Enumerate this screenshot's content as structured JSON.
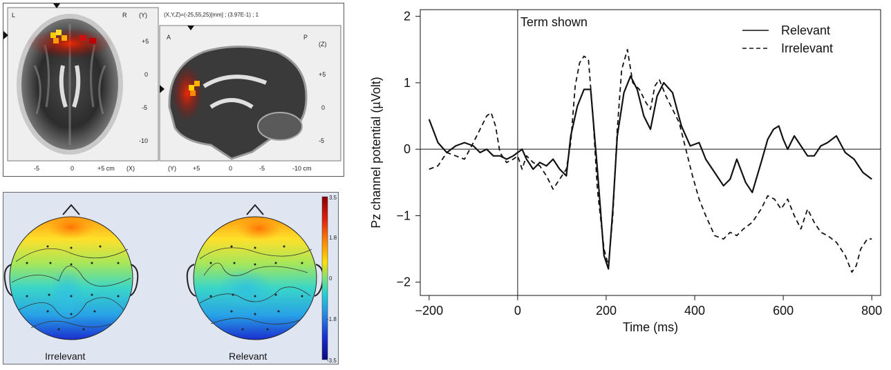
{
  "brain_panel": {
    "coord_readout": "(X,Y,Z)=(-25,55,25)[mm] ; (3.97E-1) ; 1",
    "axial": {
      "corner_left": "L",
      "corner_right": "R",
      "axis_label_right": "(Y)",
      "right_ticks": [
        "+5",
        "0",
        "-5",
        "-10"
      ],
      "bottom_ticks": [
        "-5",
        "0",
        "+5 cm",
        "(X)"
      ]
    },
    "sagittal": {
      "corner_left": "A",
      "corner_right": "P",
      "axis_label_right": "(Z)",
      "right_ticks": [
        "+5",
        "0",
        "-5"
      ],
      "bottom_label_left": "(Y)",
      "bottom_ticks": [
        "+5",
        "0",
        "-5",
        "-10 cm"
      ]
    }
  },
  "scalp_maps": {
    "maps": [
      {
        "label": "Irrelevant"
      },
      {
        "label": "Relevant"
      }
    ],
    "colorbar": {
      "ticks": [
        "3.5",
        "1.8",
        "0",
        "-1.8",
        "-3.5"
      ],
      "colors": [
        "#8b0000",
        "#e02010",
        "#ff8a00",
        "#ffe000",
        "#7ee07a",
        "#20d0d8",
        "#2a8ae0",
        "#1a2fd0",
        "#0a0a80"
      ]
    }
  },
  "chart_data": {
    "type": "line",
    "title": "",
    "xlabel": "Time (ms)",
    "ylabel": "Pz channel potential (µVolt)",
    "xlim": [
      -220,
      820
    ],
    "ylim": [
      -2.2,
      2.1
    ],
    "xticks": [
      -200,
      0,
      200,
      400,
      600,
      800
    ],
    "xtick_labels": [
      "−200",
      "0",
      "200",
      "400",
      "600",
      "800"
    ],
    "yticks": [
      -2,
      -1,
      0,
      1,
      2
    ],
    "ytick_labels": [
      "−2",
      "−1",
      "0",
      "1",
      "2"
    ],
    "grid": false,
    "legend_position": "top-right",
    "annotations": [
      {
        "text": "Term shown",
        "x": 0
      }
    ],
    "reference_lines": {
      "horizontal": 0,
      "vertical": 0
    },
    "series": [
      {
        "name": "Relevant",
        "style": "solid",
        "x": [
          -200,
          -180,
          -160,
          -140,
          -120,
          -100,
          -85,
          -70,
          -55,
          -40,
          -25,
          -10,
          0,
          10,
          20,
          35,
          50,
          65,
          80,
          95,
          110,
          120,
          135,
          150,
          165,
          180,
          195,
          205,
          215,
          225,
          240,
          255,
          270,
          285,
          300,
          315,
          330,
          350,
          370,
          390,
          410,
          425,
          445,
          465,
          480,
          495,
          515,
          530,
          550,
          565,
          578,
          590,
          600,
          610,
          625,
          640,
          655,
          670,
          685,
          700,
          720,
          740,
          760,
          780,
          800
        ],
        "values": [
          0.45,
          0.1,
          -0.05,
          0.05,
          0.1,
          0.05,
          -0.05,
          0.0,
          -0.1,
          -0.1,
          -0.15,
          -0.1,
          -0.05,
          0.0,
          -0.15,
          -0.3,
          -0.2,
          -0.25,
          -0.15,
          -0.3,
          -0.4,
          0.2,
          0.65,
          0.9,
          0.9,
          -0.3,
          -1.6,
          -1.8,
          -0.9,
          0.2,
          0.85,
          1.1,
          0.9,
          0.5,
          0.3,
          0.8,
          1.0,
          0.85,
          0.35,
          0.05,
          0.1,
          -0.15,
          -0.35,
          -0.55,
          -0.45,
          -0.15,
          -0.5,
          -0.65,
          -0.2,
          0.15,
          0.3,
          0.35,
          0.15,
          0.0,
          0.2,
          0.05,
          -0.1,
          -0.1,
          0.05,
          0.1,
          0.2,
          -0.05,
          -0.15,
          -0.35,
          -0.45
        ]
      },
      {
        "name": "Irrelevant",
        "style": "dashed",
        "x": [
          -200,
          -180,
          -160,
          -140,
          -120,
          -100,
          -85,
          -70,
          -60,
          -50,
          -40,
          -25,
          -10,
          0,
          10,
          20,
          35,
          50,
          65,
          80,
          95,
          110,
          120,
          130,
          140,
          150,
          160,
          170,
          180,
          195,
          205,
          215,
          225,
          235,
          248,
          260,
          275,
          290,
          300,
          310,
          320,
          335,
          350,
          365,
          380,
          395,
          410,
          425,
          445,
          465,
          480,
          495,
          510,
          530,
          550,
          565,
          580,
          595,
          610,
          625,
          640,
          655,
          670,
          685,
          700,
          720,
          740,
          755,
          765,
          775,
          790,
          800
        ],
        "values": [
          -0.3,
          -0.25,
          -0.05,
          -0.1,
          -0.15,
          0.1,
          0.3,
          0.5,
          0.55,
          0.35,
          -0.05,
          -0.2,
          -0.15,
          -0.1,
          -0.3,
          -0.1,
          -0.2,
          -0.25,
          -0.4,
          -0.6,
          -0.45,
          -0.3,
          0.1,
          0.95,
          1.3,
          1.4,
          1.35,
          0.5,
          -0.6,
          -1.5,
          -1.75,
          -1.0,
          0.3,
          1.2,
          1.5,
          1.0,
          0.9,
          0.7,
          0.6,
          0.95,
          1.05,
          0.8,
          0.6,
          0.4,
          0.0,
          -0.4,
          -0.75,
          -1.0,
          -1.3,
          -1.35,
          -1.25,
          -1.3,
          -1.2,
          -1.1,
          -0.9,
          -0.7,
          -0.75,
          -0.9,
          -0.75,
          -1.0,
          -1.2,
          -0.9,
          -1.1,
          -1.25,
          -1.3,
          -1.4,
          -1.6,
          -1.85,
          -1.75,
          -1.5,
          -1.35,
          -1.35
        ]
      }
    ]
  }
}
